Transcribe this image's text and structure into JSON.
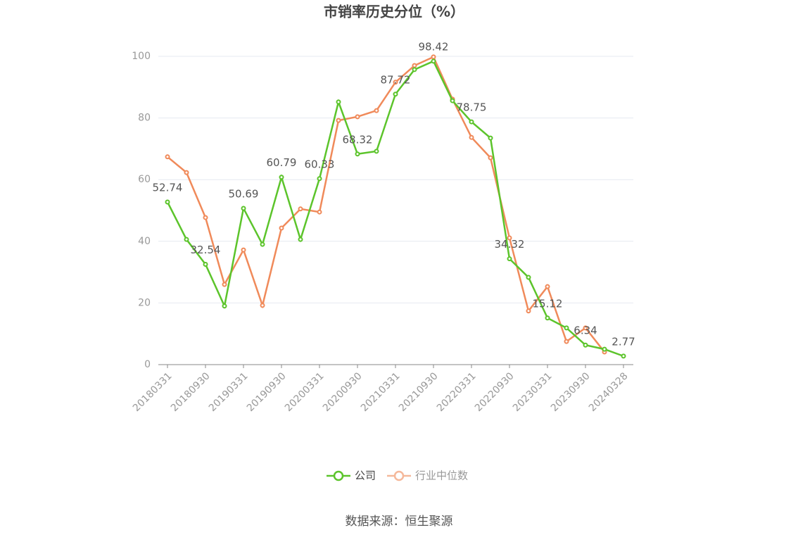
{
  "chart_data": {
    "type": "line",
    "title": "市销率历史分位（%）",
    "categories": [
      "20180331",
      null,
      "20180930",
      null,
      "20190331",
      null,
      "20190930",
      null,
      "20200331",
      null,
      "20200930",
      null,
      "20210331",
      null,
      "20210930",
      null,
      "20220331",
      null,
      "20220930",
      null,
      "20230331",
      null,
      "20230930",
      null,
      "20240328"
    ],
    "series": [
      {
        "name": "公司",
        "color": "#5cc42b",
        "values": [
          52.74,
          40.6,
          32.54,
          19.0,
          50.69,
          39.0,
          60.79,
          40.6,
          60.33,
          85.2,
          68.32,
          69.2,
          87.72,
          95.7,
          98.42,
          85.6,
          78.75,
          73.5,
          34.32,
          28.3,
          15.12,
          11.9,
          6.34,
          5.0,
          2.77
        ]
      },
      {
        "name": "行业中位数",
        "color": "#f08a5a",
        "values": [
          67.4,
          62.3,
          47.7,
          26.0,
          37.2,
          19.2,
          44.3,
          50.5,
          49.5,
          79.2,
          80.4,
          82.4,
          91.6,
          97.0,
          99.8,
          86.1,
          73.7,
          67.1,
          41.1,
          17.4,
          25.3,
          7.5,
          11.9,
          4.1,
          null
        ]
      }
    ],
    "ylim": [
      0,
      100
    ],
    "yticks": [
      0,
      20,
      40,
      60,
      80,
      100
    ],
    "grid": true,
    "source": "数据来源：恒生聚源"
  }
}
